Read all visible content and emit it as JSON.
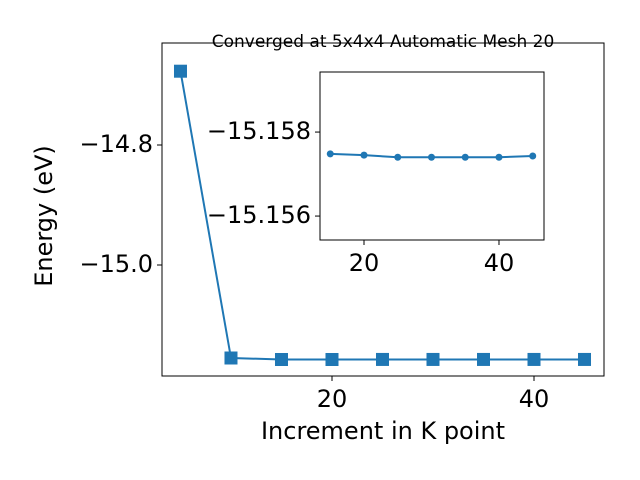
{
  "chart_data": [
    {
      "type": "line",
      "title": "Converged at 5x4x4 Automatic Mesh 20",
      "x_label": "Increment in K point",
      "y_label": "Energy (eV)",
      "x": [
        5,
        10,
        15,
        20,
        25,
        30,
        35,
        40,
        45
      ],
      "series": [
        {
          "color": "#1f77b4",
          "marker": "square",
          "values": [
            -14.677,
            -15.155,
            -15.1575,
            -15.1575,
            -15.1574,
            -15.1574,
            -15.1574,
            -15.1574,
            -15.1574
          ]
        }
      ],
      "xlim": [
        3.17,
        46.93
      ],
      "xticks": [
        20,
        40
      ],
      "ylim": [
        -15.185,
        -14.63
      ],
      "yticks": [
        {
          "value": -15.0,
          "label": "−15.0"
        },
        {
          "value": -14.8,
          "label": "−14.8"
        }
      ]
    },
    {
      "type": "line",
      "x": [
        15,
        20,
        25,
        30,
        35,
        40,
        45
      ],
      "series": [
        {
          "color": "#1f77b4",
          "marker": "circle",
          "values": [
            -15.15748,
            -15.15745,
            -15.1574,
            -15.1574,
            -15.1574,
            -15.1574,
            -15.15743
          ]
        }
      ],
      "xlim": [
        13.48,
        46.67
      ],
      "xticks": [
        20,
        40
      ],
      "ylim": [
        -15.15543,
        -15.15943
      ],
      "yticks": [
        {
          "value": -15.158,
          "label": "−15.158"
        },
        {
          "value": -15.156,
          "label": "−15.156"
        }
      ]
    }
  ]
}
